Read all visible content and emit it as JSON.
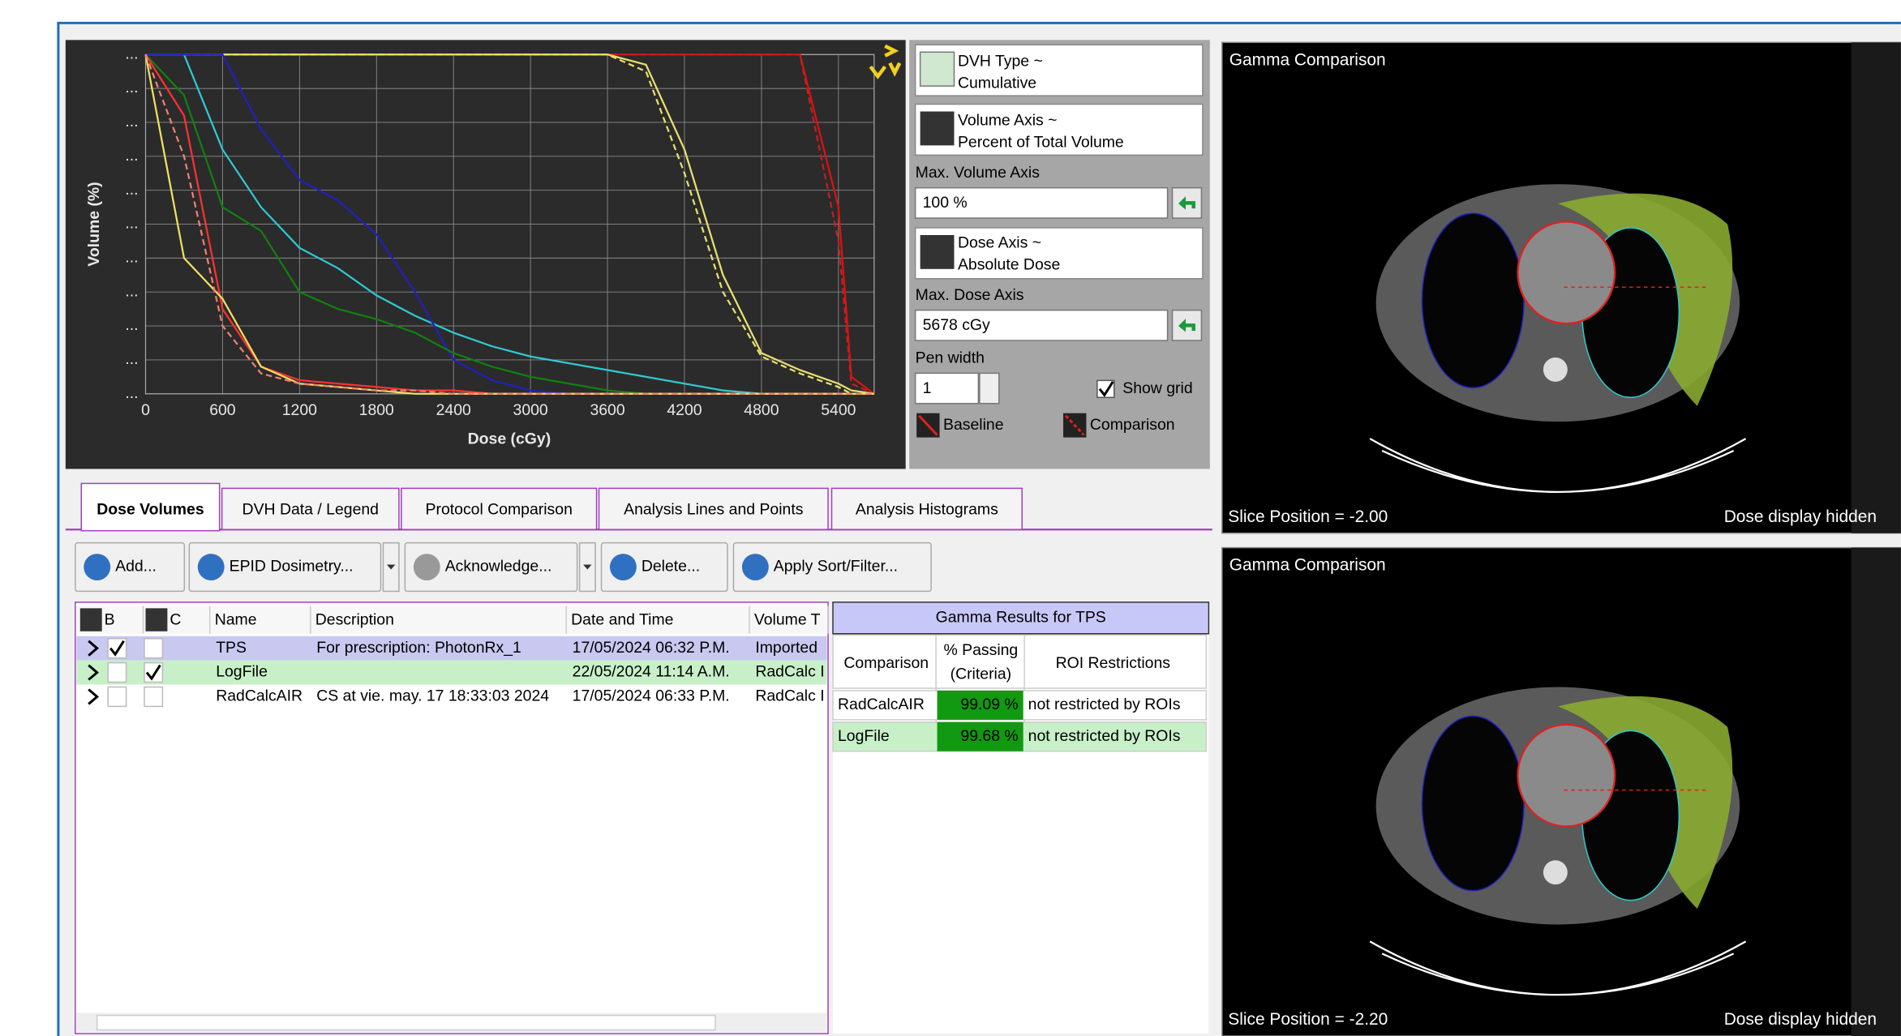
{
  "chart_data": {
    "type": "line",
    "x_label": "Dose (cGy)",
    "y_label": "Volume (%)",
    "x": [
      0,
      300,
      600,
      900,
      1200,
      1500,
      1800,
      2100,
      2400,
      2700,
      3000,
      3300,
      3600,
      3900,
      4200,
      4500,
      4800,
      5100,
      5400,
      5500,
      5678
    ],
    "xlim": [
      0,
      5678
    ],
    "ylim": [
      0,
      100
    ],
    "xticks": [
      0,
      600,
      1200,
      1800,
      2400,
      3000,
      3600,
      4200,
      4800,
      5400
    ],
    "yticks": [
      {
        "value": 0,
        "label": "..."
      },
      {
        "value": 10,
        "label": "..."
      },
      {
        "value": 20,
        "label": "..."
      },
      {
        "value": 30,
        "label": "..."
      },
      {
        "value": 40,
        "label": "..."
      },
      {
        "value": 50,
        "label": "..."
      },
      {
        "value": 60,
        "label": "..."
      },
      {
        "value": 70,
        "label": "..."
      },
      {
        "value": 80,
        "label": "..."
      },
      {
        "value": 90,
        "label": "..."
      },
      {
        "value": 100,
        "label": "..."
      }
    ],
    "grid": true,
    "series": [
      {
        "color": "#e01010",
        "dashed": false,
        "values": [
          100,
          100,
          100,
          100,
          100,
          100,
          100,
          100,
          100,
          100,
          100,
          100,
          100,
          100,
          100,
          100,
          100,
          100,
          55,
          5,
          0
        ]
      },
      {
        "color": "#c02020",
        "dashed": true,
        "values": [
          100,
          100,
          100,
          100,
          100,
          100,
          100,
          100,
          100,
          100,
          100,
          100,
          100,
          100,
          100,
          100,
          100,
          100,
          45,
          3,
          0
        ]
      },
      {
        "color": "#e8e070",
        "dashed": false,
        "values": [
          100,
          100,
          100,
          100,
          100,
          100,
          100,
          100,
          100,
          100,
          100,
          100,
          100,
          97,
          72,
          35,
          12,
          7,
          3,
          1,
          0
        ]
      },
      {
        "color": "#e8e070",
        "dashed": true,
        "values": [
          100,
          100,
          100,
          100,
          100,
          100,
          100,
          100,
          100,
          100,
          100,
          100,
          100,
          95,
          65,
          30,
          11,
          6,
          2,
          0,
          0
        ]
      },
      {
        "color": "#30c8d0",
        "dashed": false,
        "values": [
          100,
          100,
          72,
          55,
          43,
          37,
          29,
          23,
          18,
          14,
          11,
          9,
          7,
          5,
          3,
          1,
          0,
          0,
          0,
          0,
          0
        ]
      },
      {
        "color": "#2020c0",
        "dashed": false,
        "values": [
          100,
          100,
          100,
          78,
          63,
          57,
          47,
          30,
          10,
          4,
          1,
          0,
          0,
          0,
          0,
          0,
          0,
          0,
          0,
          0,
          0
        ]
      },
      {
        "color": "#108010",
        "dashed": false,
        "values": [
          100,
          88,
          55,
          48,
          30,
          25,
          22,
          18,
          12,
          8,
          5,
          3,
          1,
          0,
          0,
          0,
          0,
          0,
          0,
          0,
          0
        ]
      },
      {
        "color": "#ff3030",
        "dashed": false,
        "values": [
          100,
          82,
          25,
          8,
          4,
          3,
          2,
          1,
          1,
          0,
          0,
          0,
          0,
          0,
          0,
          0,
          0,
          0,
          0,
          0,
          0
        ]
      },
      {
        "color": "#f0e060",
        "dashed": false,
        "values": [
          100,
          40,
          28,
          8,
          3,
          2,
          1,
          0,
          0,
          0,
          0,
          0,
          0,
          0,
          0,
          0,
          0,
          0,
          0,
          0,
          0
        ]
      },
      {
        "color": "#f08070",
        "dashed": true,
        "values": [
          100,
          70,
          20,
          6,
          3,
          2,
          1,
          1,
          0,
          0,
          0,
          0,
          0,
          0,
          0,
          0,
          0,
          0,
          0,
          0,
          0
        ]
      }
    ]
  },
  "dvh_controls": {
    "dvh_type_label": "DVH Type ~",
    "dvh_type": "Cumulative",
    "volume_axis_label": "Volume Axis ~",
    "volume_axis": "Percent of Total Volume",
    "max_volume_label": "Max. Volume Axis",
    "max_volume": "100 %",
    "dose_axis_label": "Dose Axis ~",
    "dose_axis": "Absolute Dose",
    "max_dose_label": "Max. Dose Axis",
    "max_dose": "5678 cGy",
    "pen_width_label": "Pen width",
    "pen_width": "1",
    "show_grid": "Show grid",
    "show_grid_checked": true,
    "baseline": "Baseline",
    "comparison": "Comparison"
  },
  "tabs": [
    "Dose Volumes",
    "DVH Data / Legend",
    "Protocol Comparison",
    "Analysis Lines and Points",
    "Analysis Histograms"
  ],
  "toolbar": [
    "Add...",
    "EPID Dosimetry...",
    "Acknowledge...",
    "Delete...",
    "Apply Sort/Filter..."
  ],
  "table": {
    "columns": [
      "B",
      "C",
      "Name",
      "Description",
      "Date and Time",
      "Volume T"
    ],
    "rows": [
      {
        "b": true,
        "c": false,
        "name": "TPS",
        "description": "For prescription: PhotonRx_1",
        "date": "17/05/2024 06:32 P.M.",
        "volume_type": "Imported"
      },
      {
        "b": false,
        "c": true,
        "name": "LogFile",
        "description": "",
        "date": "22/05/2024 11:14 A.M.",
        "volume_type": "RadCalc I"
      },
      {
        "b": false,
        "c": false,
        "name": "RadCalcAIR",
        "description": "CS at vie. may. 17 18:33:03 2024",
        "date": "17/05/2024 06:33 P.M.",
        "volume_type": "RadCalc I"
      }
    ]
  },
  "gamma": {
    "title": "Gamma Results for TPS",
    "col_comparison": "Comparison",
    "col_passing": "% Passing",
    "col_criteria": "(Criteria)",
    "col_roi": "ROI Restrictions",
    "rows": [
      {
        "comparison": "RadCalcAIR",
        "passing": "99.09 %",
        "roi": "not restricted by ROIs"
      },
      {
        "comparison": "LogFile",
        "passing": "99.68 %",
        "roi": "not restricted by ROIs"
      }
    ]
  },
  "viewers": [
    {
      "title": "Gamma Comparison",
      "slice": "Slice Position = -2.00",
      "dose": "Dose display hidden"
    },
    {
      "title": "Gamma Comparison",
      "slice": "Slice Position = -2.20",
      "dose": "Dose display hidden"
    }
  ]
}
